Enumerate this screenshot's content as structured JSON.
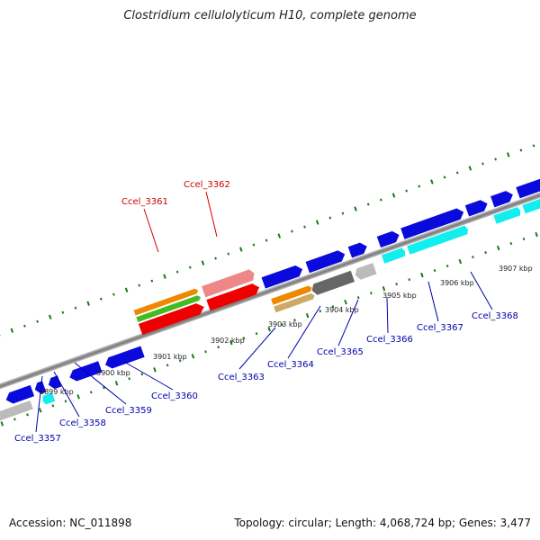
{
  "title": "Clostridium cellulolyticum H10, complete genome",
  "footer": {
    "accession": "Accession: NC_011898",
    "summary": "Topology: circular; Length: 4,068,724 bp; Genes: 3,477"
  },
  "colors": {
    "backbone": "#888888",
    "tick_green": "#1a7a1a",
    "gene_blue": "#0a0adc",
    "gene_cyan": "#11eeee",
    "gene_gray": "#bbbbbb",
    "gene_dark_gray": "#666666",
    "rna_red": "#ee0000",
    "rna_pink": "#ee8888",
    "rna_orange": "#ee8800",
    "rna_green": "#44bb22",
    "rna_tan": "#ccaa66",
    "label_blue": "#0000aa",
    "label_red": "#cc0000"
  },
  "ticks": [
    {
      "label": "3899 kbp"
    },
    {
      "label": "3900 kbp"
    },
    {
      "label": "3901 kbp"
    },
    {
      "label": "3902 kbp"
    },
    {
      "label": "3903 kbp"
    },
    {
      "label": "3904 kbp"
    },
    {
      "label": "3905 kbp"
    },
    {
      "label": "3906 kbp"
    },
    {
      "label": "3907 kbp"
    }
  ],
  "labels": [
    {
      "text": "Ccel_3357",
      "color": "blue"
    },
    {
      "text": "Ccel_3358",
      "color": "blue"
    },
    {
      "text": "Ccel_3359",
      "color": "blue"
    },
    {
      "text": "Ccel_3360",
      "color": "blue"
    },
    {
      "text": "Ccel_3361",
      "color": "red"
    },
    {
      "text": "Ccel_3362",
      "color": "red"
    },
    {
      "text": "Ccel_3363",
      "color": "blue"
    },
    {
      "text": "Ccel_3364",
      "color": "blue"
    },
    {
      "text": "Ccel_3365",
      "color": "blue"
    },
    {
      "text": "Ccel_3366",
      "color": "blue"
    },
    {
      "text": "Ccel_3367",
      "color": "blue"
    },
    {
      "text": "Ccel_3368",
      "color": "blue"
    }
  ]
}
